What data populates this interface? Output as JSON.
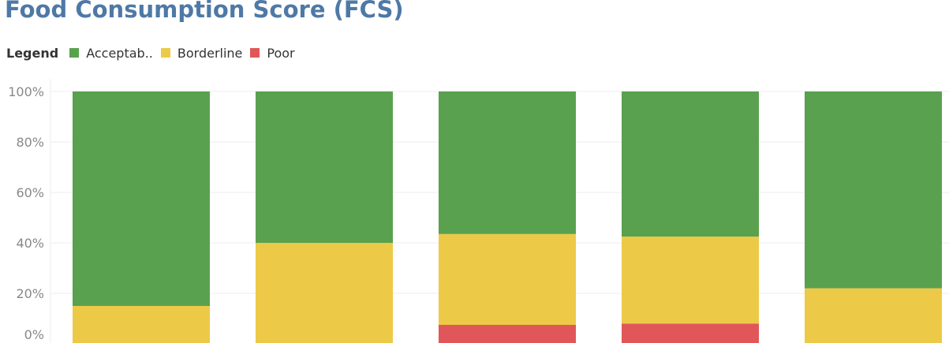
{
  "title": "Food Consumption Score (FCS)",
  "legend": {
    "title": "Legend",
    "items": [
      {
        "label": "Acceptab..",
        "color": "#59a14f"
      },
      {
        "label": "Borderline",
        "color": "#edc948"
      },
      {
        "label": "Poor",
        "color": "#e15759"
      }
    ]
  },
  "chart_data": {
    "type": "bar",
    "stacked": true,
    "categories": [
      "",
      "",
      "",
      "",
      ""
    ],
    "series": [
      {
        "name": "Poor",
        "color": "#e15759",
        "values": [
          0,
          0,
          7.5,
          8,
          0
        ]
      },
      {
        "name": "Borderline",
        "color": "#edc948",
        "values": [
          15,
          40,
          36,
          34.5,
          22
        ]
      },
      {
        "name": "Acceptab..",
        "color": "#59a14f",
        "values": [
          85,
          60,
          56.5,
          57.5,
          78
        ]
      }
    ],
    "ylim": [
      0,
      100
    ],
    "yticks": [
      "0%",
      "20%",
      "40%",
      "60%",
      "80%",
      "100%"
    ],
    "ytick_values": [
      0,
      20,
      40,
      60,
      80,
      100
    ],
    "grid": true,
    "xlabel": "",
    "ylabel": ""
  }
}
